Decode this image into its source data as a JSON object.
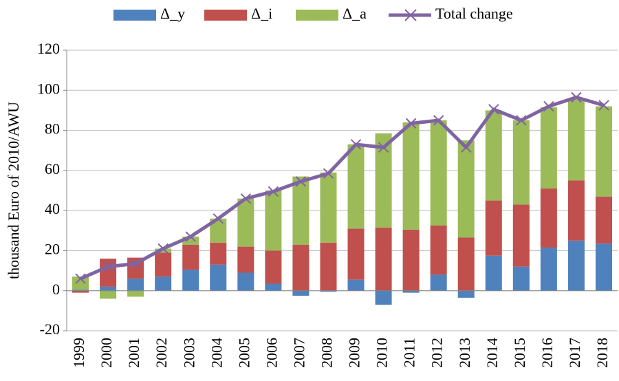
{
  "chart_data": {
    "type": "bar",
    "stacked": true,
    "y_label": "thousand Euro of 2010/AWU",
    "categories": [
      "1999",
      "2000",
      "2001",
      "2002",
      "2003",
      "2004",
      "2005",
      "2006",
      "2007",
      "2008",
      "2009",
      "2010",
      "2011",
      "2012",
      "2013",
      "2014",
      "2015",
      "2016",
      "2017",
      "2018"
    ],
    "series": [
      {
        "name": "Δ_y",
        "color": "#4f81bd",
        "values": [
          0.5,
          2,
          6,
          7,
          10.5,
          13,
          9,
          3.5,
          -2.5,
          -0.5,
          5.5,
          -7,
          -1,
          8,
          -3.5,
          17.5,
          12,
          21.5,
          25,
          23.5
        ]
      },
      {
        "name": "Δ_i",
        "color": "#c0504d",
        "values": [
          -1,
          14,
          10.5,
          12,
          12.5,
          11,
          13,
          16.5,
          23,
          24,
          25.5,
          31.5,
          30.5,
          24.5,
          26.5,
          27.5,
          31,
          29.5,
          30,
          23.5
        ]
      },
      {
        "name": "Δ_a",
        "color": "#9bbb59",
        "values": [
          6.5,
          -4,
          -3,
          2,
          4,
          12,
          24,
          30,
          34,
          35,
          42,
          47,
          53.5,
          52.5,
          48.5,
          45,
          42,
          40.5,
          41,
          45
        ]
      }
    ],
    "line": {
      "name": "Total change",
      "color": "#8064a2",
      "values": [
        6,
        12,
        13.5,
        21,
        27,
        36,
        46,
        49.5,
        54.5,
        58.5,
        73,
        71.5,
        83.5,
        85,
        71.5,
        90.5,
        85,
        92,
        96.5,
        92.5
      ]
    },
    "ylim": [
      -20,
      120
    ],
    "yticks": [
      -20,
      0,
      20,
      40,
      60,
      80,
      100,
      120
    ],
    "grid": true
  }
}
